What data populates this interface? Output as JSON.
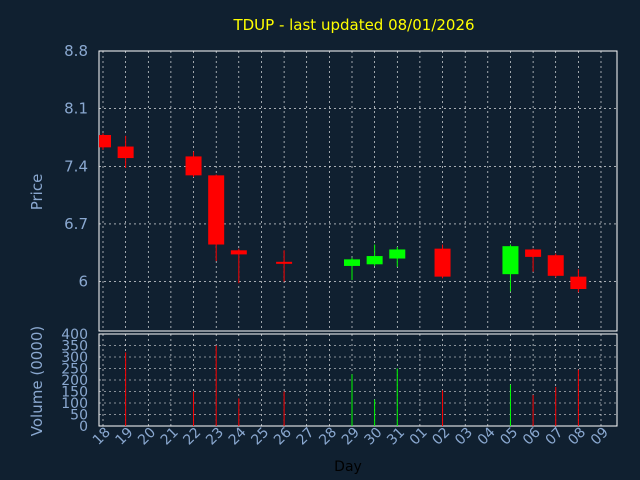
{
  "chart_data": {
    "type": "candlestick",
    "title": "TDUP - last updated 08/01/2026",
    "xlabel": "Day",
    "ylabel": "Price",
    "volume_label": "Volume (0000)",
    "x_ticks": [
      "18",
      "19",
      "20",
      "21",
      "22",
      "23",
      "24",
      "25",
      "26",
      "27",
      "28",
      "29",
      "30",
      "31",
      "01",
      "02",
      "03",
      "04",
      "05",
      "06",
      "07",
      "08",
      "09"
    ],
    "price_ticks": [
      "8.8",
      "8.1",
      "7.4",
      "6.7",
      "6"
    ],
    "price_tick_values": [
      8.8,
      8.1,
      7.4,
      6.7,
      6.0
    ],
    "price_ylim": [
      5.4,
      8.8
    ],
    "volume_ticks": [
      "400",
      "350",
      "300",
      "250",
      "200",
      "150",
      "100",
      "50",
      "0"
    ],
    "volume_tick_values": [
      400,
      350,
      300,
      250,
      200,
      150,
      100,
      50,
      0
    ],
    "volume_ylim": [
      0,
      400
    ],
    "grid": true,
    "colors": {
      "up": "#00ff00",
      "down": "#ff0000",
      "grid": "#ffffff",
      "background": "#102030",
      "title": "#ffff00",
      "axis_text": "#8aa8d0"
    },
    "candles": [
      {
        "x": "18",
        "open": 7.78,
        "close": 7.63,
        "high": 7.8,
        "low": 7.6,
        "volume": 0
      },
      {
        "x": "19",
        "open": 7.64,
        "close": 7.5,
        "high": 7.77,
        "low": 7.38,
        "volume": 320
      },
      {
        "x": "22",
        "open": 7.52,
        "close": 7.29,
        "high": 7.58,
        "low": 7.27,
        "volume": 150
      },
      {
        "x": "23",
        "open": 7.29,
        "close": 6.45,
        "high": 7.3,
        "low": 6.25,
        "volume": 350
      },
      {
        "x": "24",
        "open": 6.38,
        "close": 6.33,
        "high": 6.4,
        "low": 5.98,
        "volume": 120
      },
      {
        "x": "26",
        "open": 6.24,
        "close": 6.22,
        "high": 6.38,
        "low": 6.0,
        "volume": 150
      },
      {
        "x": "29",
        "open": 6.19,
        "close": 6.27,
        "high": 6.29,
        "low": 6.02,
        "volume": 225
      },
      {
        "x": "30",
        "open": 6.21,
        "close": 6.31,
        "high": 6.45,
        "low": 6.19,
        "volume": 115
      },
      {
        "x": "31",
        "open": 6.28,
        "close": 6.39,
        "high": 6.42,
        "low": 6.18,
        "volume": 250
      },
      {
        "x": "02",
        "open": 6.4,
        "close": 6.06,
        "high": 6.45,
        "low": 6.04,
        "volume": 155
      },
      {
        "x": "05",
        "open": 6.09,
        "close": 6.43,
        "high": 6.45,
        "low": 5.88,
        "volume": 180
      },
      {
        "x": "06",
        "open": 6.39,
        "close": 6.3,
        "high": 6.4,
        "low": 6.12,
        "volume": 135
      },
      {
        "x": "07",
        "open": 6.32,
        "close": 6.07,
        "high": 6.34,
        "low": 6.05,
        "volume": 170
      },
      {
        "x": "08",
        "open": 6.06,
        "close": 5.91,
        "high": 6.15,
        "low": 5.87,
        "volume": 245
      }
    ]
  }
}
